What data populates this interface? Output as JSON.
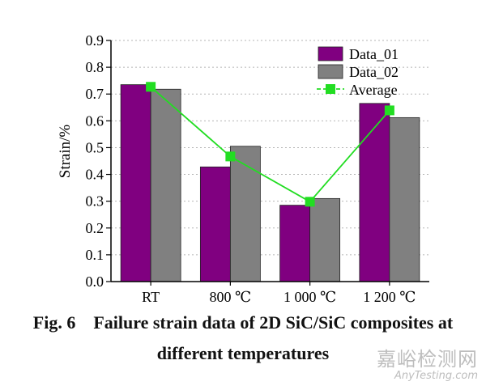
{
  "chart_data": {
    "type": "bar",
    "categories": [
      "RT",
      "800 ℃",
      "1 000 ℃",
      "1 200 ℃"
    ],
    "series": [
      {
        "name": "Data_01",
        "kind": "bar",
        "color": "#800080",
        "values": [
          0.735,
          0.428,
          0.285,
          0.665
        ]
      },
      {
        "name": "Data_02",
        "kind": "bar",
        "color": "#808080",
        "values": [
          0.718,
          0.505,
          0.31,
          0.612
        ]
      },
      {
        "name": "Average",
        "kind": "line",
        "color": "#22dd22",
        "values": [
          0.727,
          0.467,
          0.298,
          0.639
        ]
      }
    ],
    "ylabel": "Strain/%",
    "xlabel": "",
    "ylim": [
      0.0,
      0.9
    ],
    "yticks": [
      "0.0",
      "0.1",
      "0.2",
      "0.3",
      "0.4",
      "0.5",
      "0.6",
      "0.7",
      "0.8",
      "0.9"
    ],
    "grid": true,
    "legend_position": "top-right"
  },
  "caption": {
    "line1": "Fig. 6    Failure strain data of 2D SiC/SiC composites at",
    "line2": "different temperatures"
  },
  "watermark": {
    "cn": "嘉峪检测网",
    "en": "AnyTesting.com"
  }
}
